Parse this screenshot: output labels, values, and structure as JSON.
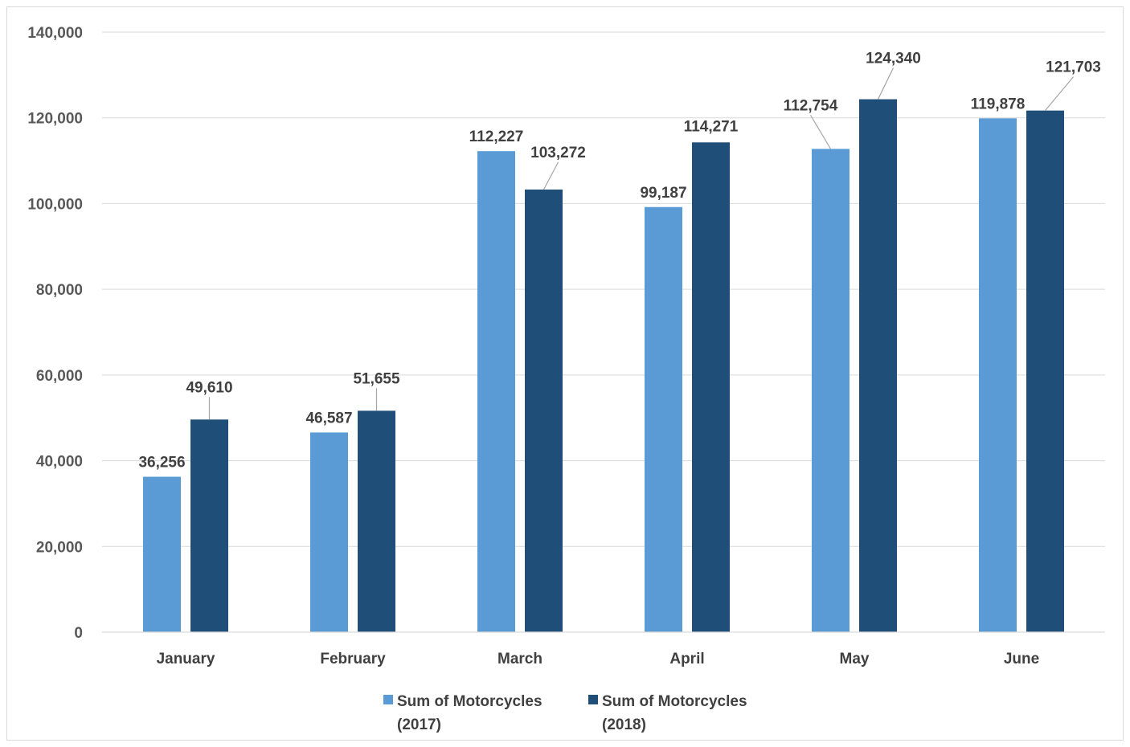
{
  "chart_data": {
    "type": "bar",
    "categories": [
      "January",
      "February",
      "March",
      "April",
      "May",
      "June"
    ],
    "series": [
      {
        "name": "Sum of Motorcycles (2017)",
        "legend_lines": [
          "Sum of Motorcycles",
          "(2017)"
        ],
        "color": "#5b9bd5",
        "values": [
          36256,
          46587,
          112227,
          99187,
          112754,
          119878
        ],
        "labels": [
          "36,256",
          "46,587",
          "112,227",
          "99,187",
          "112,754",
          "119,878"
        ]
      },
      {
        "name": "Sum of Motorcycles (2018)",
        "legend_lines": [
          "Sum of Motorcycles",
          "(2018)"
        ],
        "color": "#1f4e79",
        "values": [
          49610,
          51655,
          103272,
          114271,
          124340,
          121703
        ],
        "labels": [
          "49,610",
          "51,655",
          "103,272",
          "114,271",
          "124,340",
          "121,703"
        ]
      }
    ],
    "ylim": [
      0,
      140000
    ],
    "yticks": [
      0,
      20000,
      40000,
      60000,
      80000,
      100000,
      120000,
      140000
    ],
    "ytick_labels": [
      "0",
      "20,000",
      "40,000",
      "60,000",
      "80,000",
      "100,000",
      "120,000",
      "140,000"
    ],
    "grid": true,
    "legend_position": "bottom",
    "title": "",
    "xlabel": "",
    "ylabel": ""
  }
}
